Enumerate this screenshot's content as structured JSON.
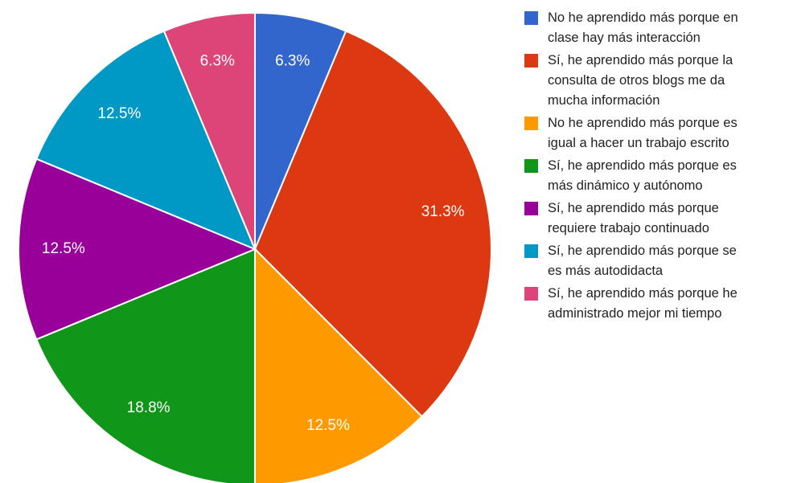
{
  "chart_data": {
    "type": "pie",
    "title": "",
    "legend_position": "right",
    "slices": [
      {
        "label": "No he aprendido más porque en\nclase hay más interacción",
        "value": 6.3,
        "display": "6.3%",
        "color": "#3366cc"
      },
      {
        "label": "Sí, he aprendido más porque la\nconsulta de otros blogs me da\nmucha información",
        "value": 31.3,
        "display": "31.3%",
        "color": "#dc3912"
      },
      {
        "label": "No he aprendido más porque es\nigual a hacer un trabajo escrito",
        "value": 12.5,
        "display": "12.5%",
        "color": "#ff9900"
      },
      {
        "label": "Sí, he aprendido más porque es\nmás dinámico y autónomo",
        "value": 18.8,
        "display": "18.8%",
        "color": "#109618"
      },
      {
        "label": "Sí, he aprendido más porque\nrequiere trabajo continuado",
        "value": 12.5,
        "display": "12.5%",
        "color": "#990099"
      },
      {
        "label": "Sí, he aprendido más porque se\nes más autodidacta",
        "value": 12.5,
        "display": "12.5%",
        "color": "#0099c6"
      },
      {
        "label": "Sí, he aprendido más porque he\nadministrado mejor mi tiempo",
        "value": 6.3,
        "display": "6.3%",
        "color": "#dd4477"
      }
    ]
  }
}
